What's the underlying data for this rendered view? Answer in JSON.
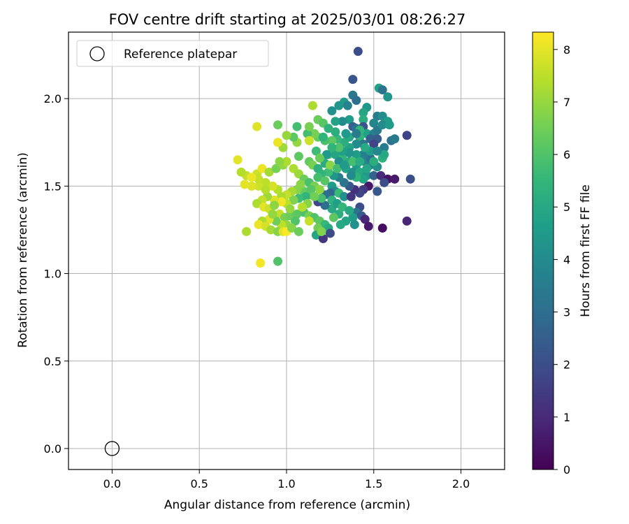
{
  "chart_data": {
    "type": "scatter",
    "title": "FOV centre drift starting at 2025/03/01 08:26:27",
    "xlabel": "Angular distance from reference (arcmin)",
    "ylabel": "Rotation from reference (arcmin)",
    "xlim": [
      -0.25,
      2.25
    ],
    "ylim": [
      -0.12,
      2.38
    ],
    "xticks": [
      "0.0",
      "0.5",
      "1.0",
      "1.5",
      "2.0"
    ],
    "yticks": [
      "0.0",
      "0.5",
      "1.0",
      "1.5",
      "2.0"
    ],
    "grid": true,
    "legend": {
      "placement": "top-left",
      "label": "Reference platepar"
    },
    "reference_point": {
      "x": 0.0,
      "y": 0.0
    },
    "colorbar": {
      "label": "Hours from first FF file",
      "min": 0,
      "max": 8.33,
      "ticks": [
        "0",
        "1",
        "2",
        "3",
        "4",
        "5",
        "6",
        "7",
        "8"
      ],
      "colormap": [
        "#440154",
        "#482878",
        "#3e4989",
        "#31688e",
        "#26828e",
        "#1f9e89",
        "#35b779",
        "#6ece58",
        "#b5de2b",
        "#fde725"
      ]
    },
    "points": [
      [
        1.41,
        2.27,
        2.0
      ],
      [
        1.38,
        2.11,
        2.2
      ],
      [
        1.53,
        2.06,
        4.8
      ],
      [
        1.55,
        2.05,
        3.2
      ],
      [
        1.58,
        2.01,
        4.3
      ],
      [
        1.38,
        2.02,
        3.3
      ],
      [
        1.33,
        1.98,
        4.6
      ],
      [
        1.3,
        1.96,
        4.4
      ],
      [
        1.35,
        1.96,
        3.7
      ],
      [
        1.4,
        1.99,
        3.0
      ],
      [
        1.26,
        1.93,
        4.2
      ],
      [
        1.46,
        1.95,
        4.4
      ],
      [
        1.44,
        1.92,
        4.9
      ],
      [
        1.52,
        1.9,
        3.5
      ],
      [
        1.55,
        1.9,
        4.1
      ],
      [
        1.58,
        1.87,
        4.6
      ],
      [
        1.5,
        1.86,
        3.8
      ],
      [
        1.44,
        1.88,
        5.2
      ],
      [
        1.36,
        1.88,
        4.6
      ],
      [
        1.32,
        1.87,
        4.0
      ],
      [
        1.28,
        1.87,
        4.8
      ],
      [
        1.38,
        1.84,
        2.5
      ],
      [
        1.44,
        1.84,
        2.2
      ],
      [
        1.4,
        1.83,
        3.0
      ],
      [
        1.46,
        1.8,
        4.7
      ],
      [
        1.5,
        1.8,
        3.6
      ],
      [
        1.52,
        1.82,
        3.4
      ],
      [
        1.55,
        1.85,
        4.0
      ],
      [
        1.59,
        1.85,
        4.5
      ],
      [
        1.42,
        1.78,
        5.3
      ],
      [
        1.42,
        1.82,
        5.5
      ],
      [
        1.48,
        1.77,
        2.5
      ],
      [
        1.52,
        1.77,
        2.4
      ],
      [
        1.56,
        1.72,
        3.5
      ],
      [
        1.6,
        1.76,
        3.1
      ],
      [
        1.62,
        1.77,
        3.4
      ],
      [
        1.69,
        1.79,
        1.7
      ],
      [
        1.5,
        1.74,
        1.7
      ],
      [
        1.44,
        1.74,
        3.3
      ],
      [
        1.4,
        1.74,
        4.0
      ],
      [
        1.36,
        1.72,
        4.8
      ],
      [
        1.33,
        1.75,
        5.2
      ],
      [
        1.29,
        1.77,
        5.5
      ],
      [
        1.26,
        1.76,
        6.2
      ],
      [
        1.22,
        1.76,
        5.9
      ],
      [
        1.18,
        1.78,
        6.3
      ],
      [
        1.16,
        1.8,
        6.6
      ],
      [
        1.12,
        1.8,
        5.8
      ],
      [
        1.06,
        1.84,
        5.8
      ],
      [
        1.13,
        1.84,
        6.6
      ],
      [
        1.18,
        1.88,
        6.4
      ],
      [
        1.21,
        1.86,
        6.1
      ],
      [
        1.28,
        1.81,
        5.2
      ],
      [
        1.24,
        1.83,
        5.3
      ],
      [
        1.21,
        1.78,
        5.4
      ],
      [
        1.17,
        1.7,
        5.7
      ],
      [
        1.13,
        1.76,
        7.7
      ],
      [
        1.06,
        1.75,
        7.0
      ],
      [
        1.04,
        1.78,
        6.2
      ],
      [
        1.0,
        1.79,
        7.0
      ],
      [
        0.95,
        1.85,
        6.4
      ],
      [
        0.98,
        1.72,
        7.1
      ],
      [
        0.95,
        1.75,
        8.1
      ],
      [
        0.83,
        1.84,
        7.9
      ],
      [
        1.15,
        1.96,
        7.3
      ],
      [
        1.07,
        1.67,
        6.2
      ],
      [
        1.13,
        1.64,
        6.3
      ],
      [
        1.15,
        1.62,
        6.6
      ],
      [
        1.18,
        1.6,
        5.3
      ],
      [
        1.22,
        1.63,
        5.1
      ],
      [
        1.24,
        1.68,
        6.1
      ],
      [
        1.28,
        1.68,
        4.9
      ],
      [
        1.32,
        1.66,
        5.4
      ],
      [
        1.36,
        1.64,
        5.1
      ],
      [
        1.4,
        1.62,
        4.5
      ],
      [
        1.45,
        1.64,
        4.0
      ],
      [
        1.48,
        1.62,
        3.8
      ],
      [
        1.52,
        1.61,
        4.1
      ],
      [
        1.55,
        1.66,
        5.3
      ],
      [
        1.56,
        1.68,
        5.0
      ],
      [
        1.48,
        1.66,
        3.0
      ],
      [
        1.44,
        1.68,
        3.6
      ],
      [
        1.4,
        1.68,
        4.6
      ],
      [
        1.36,
        1.69,
        4.3
      ],
      [
        1.32,
        1.7,
        4.7
      ],
      [
        1.3,
        1.64,
        4.1
      ],
      [
        1.34,
        1.6,
        4.8
      ],
      [
        1.38,
        1.58,
        4.2
      ],
      [
        1.42,
        1.58,
        5.0
      ],
      [
        1.46,
        1.56,
        4.4
      ],
      [
        1.5,
        1.56,
        2.7
      ],
      [
        1.54,
        1.56,
        1.1
      ],
      [
        1.58,
        1.54,
        0.4
      ],
      [
        1.62,
        1.54,
        0.6
      ],
      [
        1.71,
        1.54,
        2.0
      ],
      [
        1.56,
        1.52,
        2.0
      ],
      [
        1.52,
        1.47,
        2.3
      ],
      [
        1.47,
        1.5,
        0.5
      ],
      [
        1.44,
        1.48,
        1.4
      ],
      [
        1.42,
        1.46,
        1.8
      ],
      [
        1.39,
        1.48,
        1.2
      ],
      [
        1.36,
        1.5,
        2.3
      ],
      [
        1.33,
        1.52,
        3.2
      ],
      [
        1.3,
        1.55,
        3.6
      ],
      [
        1.27,
        1.56,
        4.4
      ],
      [
        1.24,
        1.58,
        5.7
      ],
      [
        1.2,
        1.57,
        5.4
      ],
      [
        1.18,
        1.55,
        5.8
      ],
      [
        1.22,
        1.53,
        6.1
      ],
      [
        1.26,
        1.5,
        4.6
      ],
      [
        1.28,
        1.47,
        3.9
      ],
      [
        1.25,
        1.46,
        2.8
      ],
      [
        1.22,
        1.45,
        3.0
      ],
      [
        1.3,
        1.46,
        5.6
      ],
      [
        1.33,
        1.44,
        4.2
      ],
      [
        1.37,
        1.44,
        1.3
      ],
      [
        1.42,
        1.38,
        2.0
      ],
      [
        1.4,
        1.35,
        3.2
      ],
      [
        1.43,
        1.33,
        2.4
      ],
      [
        1.38,
        1.32,
        4.6
      ],
      [
        1.45,
        1.31,
        0.9
      ],
      [
        1.47,
        1.27,
        0.6
      ],
      [
        1.55,
        1.26,
        0.3
      ],
      [
        1.69,
        1.3,
        0.9
      ],
      [
        1.34,
        1.3,
        4.9
      ],
      [
        1.3,
        1.34,
        5.2
      ],
      [
        1.26,
        1.37,
        5.0
      ],
      [
        1.22,
        1.39,
        3.0
      ],
      [
        1.18,
        1.41,
        1.8
      ],
      [
        1.2,
        1.43,
        5.8
      ],
      [
        1.14,
        1.45,
        6.4
      ],
      [
        1.1,
        1.47,
        6.3
      ],
      [
        1.06,
        1.48,
        6.8
      ],
      [
        1.03,
        1.47,
        7.2
      ],
      [
        1.0,
        1.45,
        7.6
      ],
      [
        0.97,
        1.44,
        7.3
      ],
      [
        0.95,
        1.48,
        7.4
      ],
      [
        0.92,
        1.5,
        7.8
      ],
      [
        0.88,
        1.52,
        7.5
      ],
      [
        0.84,
        1.5,
        7.7
      ],
      [
        0.8,
        1.5,
        7.9
      ],
      [
        0.76,
        1.51,
        8.0
      ],
      [
        0.77,
        1.56,
        7.6
      ],
      [
        0.74,
        1.58,
        7.4
      ],
      [
        0.72,
        1.65,
        8.0
      ],
      [
        0.83,
        1.57,
        7.7
      ],
      [
        0.86,
        1.6,
        8.1
      ],
      [
        0.9,
        1.58,
        7.2
      ],
      [
        0.94,
        1.6,
        6.6
      ],
      [
        0.98,
        1.62,
        7.0
      ],
      [
        1.0,
        1.64,
        7.3
      ],
      [
        0.96,
        1.64,
        6.9
      ],
      [
        1.04,
        1.6,
        7.3
      ],
      [
        1.07,
        1.57,
        7.1
      ],
      [
        1.1,
        1.54,
        6.4
      ],
      [
        1.08,
        1.51,
        6.8
      ],
      [
        1.13,
        1.52,
        5.9
      ],
      [
        1.16,
        1.5,
        6.6
      ],
      [
        1.19,
        1.48,
        6.9
      ],
      [
        1.14,
        1.48,
        6.1
      ],
      [
        1.11,
        1.44,
        5.4
      ],
      [
        1.07,
        1.43,
        5.7
      ],
      [
        1.04,
        1.42,
        6.7
      ],
      [
        1.0,
        1.4,
        7.5
      ],
      [
        0.97,
        1.41,
        8.2
      ],
      [
        0.93,
        1.42,
        7.9
      ],
      [
        0.89,
        1.44,
        7.1
      ],
      [
        0.86,
        1.42,
        7.6
      ],
      [
        0.83,
        1.4,
        7.3
      ],
      [
        0.87,
        1.38,
        8.0
      ],
      [
        0.9,
        1.37,
        7.7
      ],
      [
        0.93,
        1.39,
        6.9
      ],
      [
        0.96,
        1.34,
        7.6
      ],
      [
        0.99,
        1.32,
        6.6
      ],
      [
        1.02,
        1.33,
        6.4
      ],
      [
        1.06,
        1.34,
        6.2
      ],
      [
        1.1,
        1.35,
        6.0
      ],
      [
        1.13,
        1.33,
        6.6
      ],
      [
        1.16,
        1.32,
        6.0
      ],
      [
        1.19,
        1.3,
        6.2
      ],
      [
        1.22,
        1.28,
        5.6
      ],
      [
        1.24,
        1.26,
        5.1
      ],
      [
        1.18,
        1.26,
        6.5
      ],
      [
        1.17,
        1.22,
        4.9
      ],
      [
        1.21,
        1.2,
        1.3
      ],
      [
        1.25,
        1.23,
        1.9
      ],
      [
        1.2,
        1.24,
        6.7
      ],
      [
        1.13,
        1.3,
        7.6
      ],
      [
        1.05,
        1.3,
        6.0
      ],
      [
        1.0,
        1.28,
        7.0
      ],
      [
        0.97,
        1.28,
        7.5
      ],
      [
        0.94,
        1.3,
        6.5
      ],
      [
        0.9,
        1.31,
        8.0
      ],
      [
        0.86,
        1.3,
        7.3
      ],
      [
        0.84,
        1.28,
        8.1
      ],
      [
        0.88,
        1.27,
        7.8
      ],
      [
        0.91,
        1.25,
        7.2
      ],
      [
        0.95,
        1.24,
        6.8
      ],
      [
        0.98,
        1.24,
        7.9
      ],
      [
        1.0,
        1.24,
        8.3
      ],
      [
        1.03,
        1.26,
        6.8
      ],
      [
        1.07,
        1.24,
        6.4
      ],
      [
        0.77,
        1.24,
        7.3
      ],
      [
        0.85,
        1.06,
        8.2
      ],
      [
        0.95,
        1.07,
        6.0
      ],
      [
        1.44,
        1.54,
        4.8
      ],
      [
        1.4,
        1.55,
        5.4
      ],
      [
        1.37,
        1.56,
        4.0
      ],
      [
        1.46,
        1.6,
        4.9
      ],
      [
        1.5,
        1.64,
        5.2
      ],
      [
        1.36,
        1.78,
        5.0
      ],
      [
        1.34,
        1.8,
        4.5
      ],
      [
        1.4,
        1.8,
        3.5
      ],
      [
        1.48,
        1.7,
        4.6
      ],
      [
        1.52,
        1.7,
        3.9
      ],
      [
        1.45,
        1.72,
        5.0
      ],
      [
        1.3,
        1.72,
        6.0
      ],
      [
        1.26,
        1.72,
        5.4
      ],
      [
        1.23,
        1.68,
        4.5
      ],
      [
        1.19,
        1.66,
        6.4
      ],
      [
        1.25,
        1.62,
        6.8
      ],
      [
        1.29,
        1.6,
        5.8
      ],
      [
        1.33,
        1.62,
        4.5
      ],
      [
        1.38,
        1.64,
        5.8
      ],
      [
        1.42,
        1.64,
        5.1
      ],
      [
        1.26,
        1.42,
        5.3
      ],
      [
        1.29,
        1.4,
        4.7
      ],
      [
        1.32,
        1.38,
        5.5
      ],
      [
        1.36,
        1.36,
        5.0
      ],
      [
        1.27,
        1.32,
        6.2
      ],
      [
        1.31,
        1.28,
        5.0
      ],
      [
        1.39,
        1.28,
        4.2
      ],
      [
        1.16,
        1.44,
        6.5
      ],
      [
        1.12,
        1.4,
        6.8
      ],
      [
        1.09,
        1.38,
        7.4
      ],
      [
        1.02,
        1.37,
        7.0
      ],
      [
        0.92,
        1.34,
        7.0
      ],
      [
        0.88,
        1.48,
        7.4
      ],
      [
        0.84,
        1.54,
        7.6
      ],
      [
        0.8,
        1.55,
        8.1
      ]
    ]
  }
}
